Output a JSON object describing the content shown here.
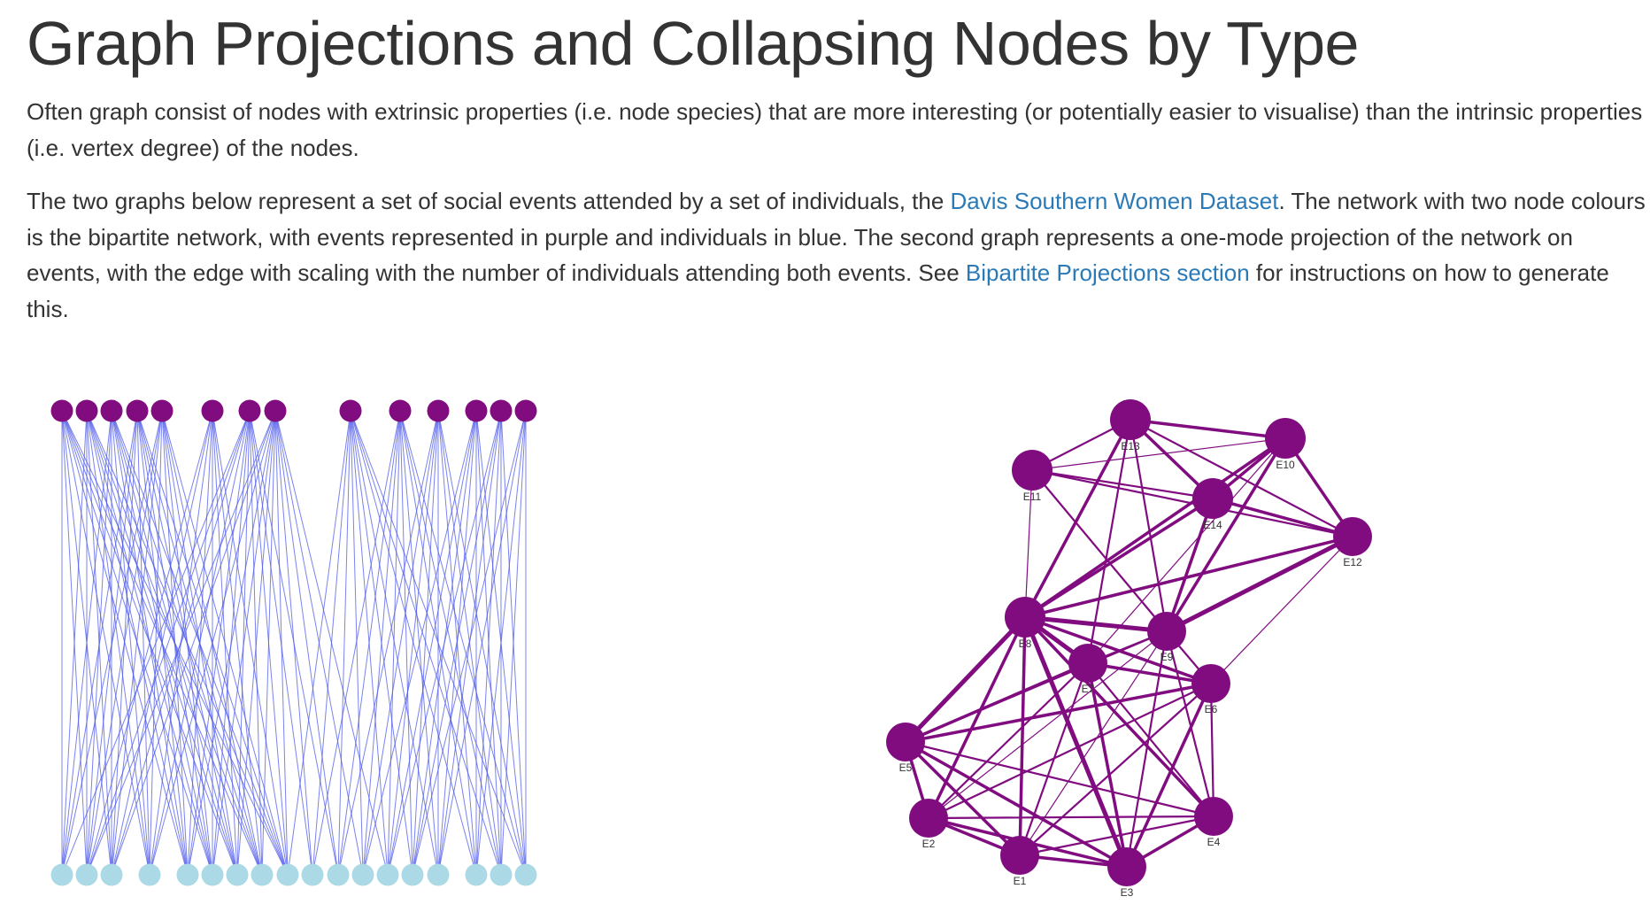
{
  "heading": "Graph Projections and Collapsing Nodes by Type",
  "intro_paragraph": "Often graph consist of nodes with extrinsic properties (i.e. node species) that are more interesting (or potentially easier to visualise) than the intrinsic properties (i.e. vertex degree) of the nodes.",
  "description": {
    "text_before_link1": "The two graphs below represent a set of social events attended by a set of individuals, the ",
    "link1_text": "Davis Southern Women Dataset",
    "text_between_links": ". The network with two node colours is the bipartite network, with events represented in purple and individuals in blue. The second graph represents a one-mode projection of the network on events, with the edge with scaling with the number of individuals attending both events. See ",
    "link2_text": "Bipartite Projections section",
    "text_after_link2": " for instructions on how to generate this."
  },
  "colors": {
    "event_node": "#800c80",
    "individual_node": "#abd9e6",
    "bipartite_edge": "#4d5ae8",
    "projection_edge": "#800c80",
    "link": "#2a7ab7"
  },
  "bipartite_graph": {
    "event_node_count": 14,
    "individual_node_count": 18,
    "attendance_edges": [
      [
        0,
        0
      ],
      [
        0,
        1
      ],
      [
        0,
        2
      ],
      [
        0,
        3
      ],
      [
        0,
        4
      ],
      [
        0,
        5
      ],
      [
        0,
        6
      ],
      [
        0,
        7
      ],
      [
        0,
        8
      ],
      [
        1,
        0
      ],
      [
        1,
        1
      ],
      [
        1,
        2
      ],
      [
        1,
        3
      ],
      [
        1,
        4
      ],
      [
        1,
        5
      ],
      [
        1,
        6
      ],
      [
        1,
        7
      ],
      [
        1,
        8
      ],
      [
        2,
        0
      ],
      [
        2,
        1
      ],
      [
        2,
        2
      ],
      [
        2,
        3
      ],
      [
        2,
        4
      ],
      [
        2,
        5
      ],
      [
        2,
        6
      ],
      [
        2,
        7
      ],
      [
        2,
        8
      ],
      [
        3,
        0
      ],
      [
        3,
        1
      ],
      [
        3,
        2
      ],
      [
        3,
        3
      ],
      [
        3,
        4
      ],
      [
        3,
        5
      ],
      [
        3,
        6
      ],
      [
        3,
        7
      ],
      [
        3,
        8
      ],
      [
        4,
        0
      ],
      [
        4,
        1
      ],
      [
        4,
        2
      ],
      [
        4,
        3
      ],
      [
        4,
        4
      ],
      [
        4,
        5
      ],
      [
        4,
        6
      ],
      [
        4,
        7
      ],
      [
        4,
        8
      ],
      [
        5,
        1
      ],
      [
        5,
        2
      ],
      [
        5,
        3
      ],
      [
        5,
        4
      ],
      [
        5,
        5
      ],
      [
        5,
        6
      ],
      [
        5,
        7
      ],
      [
        5,
        8
      ],
      [
        6,
        0
      ],
      [
        6,
        1
      ],
      [
        6,
        2
      ],
      [
        6,
        3
      ],
      [
        6,
        4
      ],
      [
        6,
        5
      ],
      [
        6,
        6
      ],
      [
        6,
        7
      ],
      [
        6,
        8
      ],
      [
        6,
        9
      ],
      [
        6,
        10
      ],
      [
        7,
        1
      ],
      [
        7,
        2
      ],
      [
        7,
        3
      ],
      [
        7,
        4
      ],
      [
        7,
        5
      ],
      [
        7,
        6
      ],
      [
        7,
        7
      ],
      [
        7,
        8
      ],
      [
        7,
        9
      ],
      [
        7,
        10
      ],
      [
        7,
        11
      ],
      [
        7,
        12
      ],
      [
        8,
        8
      ],
      [
        8,
        9
      ],
      [
        8,
        10
      ],
      [
        8,
        11
      ],
      [
        8,
        12
      ],
      [
        8,
        13
      ],
      [
        8,
        14
      ],
      [
        8,
        15
      ],
      [
        8,
        16
      ],
      [
        8,
        17
      ],
      [
        9,
        9
      ],
      [
        9,
        10
      ],
      [
        9,
        11
      ],
      [
        9,
        12
      ],
      [
        9,
        13
      ],
      [
        9,
        14
      ],
      [
        9,
        15
      ],
      [
        9,
        16
      ],
      [
        9,
        17
      ],
      [
        10,
        10
      ],
      [
        10,
        11
      ],
      [
        10,
        12
      ],
      [
        10,
        13
      ],
      [
        10,
        14
      ],
      [
        10,
        15
      ],
      [
        10,
        16
      ],
      [
        10,
        17
      ],
      [
        11,
        11
      ],
      [
        11,
        12
      ],
      [
        11,
        13
      ],
      [
        11,
        14
      ],
      [
        11,
        15
      ],
      [
        11,
        16
      ],
      [
        11,
        17
      ],
      [
        12,
        12
      ],
      [
        12,
        13
      ],
      [
        12,
        14
      ],
      [
        12,
        15
      ],
      [
        12,
        16
      ],
      [
        12,
        17
      ],
      [
        13,
        13
      ],
      [
        13,
        14
      ],
      [
        13,
        15
      ],
      [
        13,
        16
      ],
      [
        13,
        17
      ]
    ]
  },
  "projection_graph": {
    "nodes": [
      {
        "id": "E1",
        "label": "E1"
      },
      {
        "id": "E2",
        "label": "E2"
      },
      {
        "id": "E3",
        "label": "E3"
      },
      {
        "id": "E4",
        "label": "E4"
      },
      {
        "id": "E5",
        "label": "E5"
      },
      {
        "id": "E6",
        "label": "E6"
      },
      {
        "id": "E7",
        "label": "E7"
      },
      {
        "id": "E8",
        "label": "E8"
      },
      {
        "id": "E9",
        "label": "E9"
      },
      {
        "id": "E10",
        "label": "E10"
      },
      {
        "id": "E11",
        "label": "E11"
      },
      {
        "id": "E12",
        "label": "E12"
      },
      {
        "id": "E13",
        "label": "E13"
      },
      {
        "id": "E14",
        "label": "E14"
      }
    ],
    "edges": [
      [
        "E1",
        "E2",
        3
      ],
      [
        "E1",
        "E3",
        3
      ],
      [
        "E1",
        "E4",
        2
      ],
      [
        "E1",
        "E5",
        3
      ],
      [
        "E1",
        "E6",
        2
      ],
      [
        "E1",
        "E7",
        2
      ],
      [
        "E1",
        "E8",
        3
      ],
      [
        "E1",
        "E9",
        1
      ],
      [
        "E2",
        "E3",
        3
      ],
      [
        "E2",
        "E4",
        2
      ],
      [
        "E2",
        "E5",
        3
      ],
      [
        "E2",
        "E6",
        2
      ],
      [
        "E2",
        "E7",
        2
      ],
      [
        "E2",
        "E8",
        3
      ],
      [
        "E2",
        "E9",
        1
      ],
      [
        "E3",
        "E4",
        3
      ],
      [
        "E3",
        "E5",
        3
      ],
      [
        "E3",
        "E6",
        3
      ],
      [
        "E3",
        "E7",
        3
      ],
      [
        "E3",
        "E8",
        4
      ],
      [
        "E3",
        "E9",
        2
      ],
      [
        "E4",
        "E5",
        2
      ],
      [
        "E4",
        "E6",
        2
      ],
      [
        "E4",
        "E7",
        2
      ],
      [
        "E4",
        "E8",
        3
      ],
      [
        "E4",
        "E9",
        2
      ],
      [
        "E5",
        "E6",
        3
      ],
      [
        "E5",
        "E7",
        3
      ],
      [
        "E5",
        "E8",
        4
      ],
      [
        "E5",
        "E9",
        2
      ],
      [
        "E6",
        "E7",
        3
      ],
      [
        "E6",
        "E8",
        3
      ],
      [
        "E6",
        "E9",
        2
      ],
      [
        "E6",
        "E12",
        1
      ],
      [
        "E7",
        "E8",
        4
      ],
      [
        "E7",
        "E9",
        2
      ],
      [
        "E7",
        "E10",
        1
      ],
      [
        "E7",
        "E13",
        2
      ],
      [
        "E8",
        "E9",
        4
      ],
      [
        "E8",
        "E10",
        3
      ],
      [
        "E8",
        "E11",
        1
      ],
      [
        "E8",
        "E12",
        3
      ],
      [
        "E8",
        "E13",
        3
      ],
      [
        "E8",
        "E14",
        3
      ],
      [
        "E9",
        "E10",
        3
      ],
      [
        "E9",
        "E11",
        2
      ],
      [
        "E9",
        "E12",
        4
      ],
      [
        "E9",
        "E13",
        2
      ],
      [
        "E9",
        "E14",
        3
      ],
      [
        "E10",
        "E11",
        1
      ],
      [
        "E10",
        "E12",
        3
      ],
      [
        "E10",
        "E13",
        3
      ],
      [
        "E10",
        "E14",
        3
      ],
      [
        "E11",
        "E12",
        2
      ],
      [
        "E11",
        "E13",
        2
      ],
      [
        "E11",
        "E14",
        2
      ],
      [
        "E12",
        "E13",
        2
      ],
      [
        "E12",
        "E14",
        3
      ],
      [
        "E13",
        "E14",
        3
      ]
    ]
  }
}
